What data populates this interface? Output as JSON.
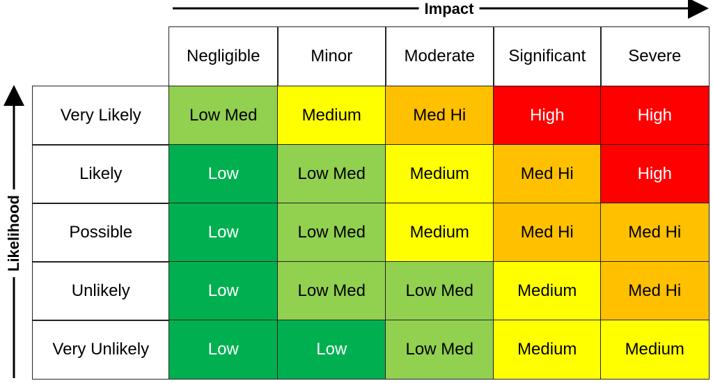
{
  "impact_label": "Impact",
  "likelihood_label": "Likelihood",
  "columns": [
    "Negligible",
    "Minor",
    "Moderate",
    "Significant",
    "Severe"
  ],
  "rows": [
    {
      "label": "Very Likely",
      "cells": [
        {
          "text": "Low Med",
          "color": "#92d050",
          "text_color": "#000000"
        },
        {
          "text": "Medium",
          "color": "#ffff00",
          "text_color": "#000000"
        },
        {
          "text": "Med Hi",
          "color": "#ffc000",
          "text_color": "#000000"
        },
        {
          "text": "High",
          "color": "#ff0000",
          "text_color": "#ffffff"
        },
        {
          "text": "High",
          "color": "#ff0000",
          "text_color": "#ffffff"
        }
      ]
    },
    {
      "label": "Likely",
      "cells": [
        {
          "text": "Low",
          "color": "#00b050",
          "text_color": "#ffffff"
        },
        {
          "text": "Low Med",
          "color": "#92d050",
          "text_color": "#000000"
        },
        {
          "text": "Medium",
          "color": "#ffff00",
          "text_color": "#000000"
        },
        {
          "text": "Med Hi",
          "color": "#ffc000",
          "text_color": "#000000"
        },
        {
          "text": "High",
          "color": "#ff0000",
          "text_color": "#ffffff"
        }
      ]
    },
    {
      "label": "Possible",
      "cells": [
        {
          "text": "Low",
          "color": "#00b050",
          "text_color": "#ffffff"
        },
        {
          "text": "Low Med",
          "color": "#92d050",
          "text_color": "#000000"
        },
        {
          "text": "Medium",
          "color": "#ffff00",
          "text_color": "#000000"
        },
        {
          "text": "Med Hi",
          "color": "#ffc000",
          "text_color": "#000000"
        },
        {
          "text": "Med Hi",
          "color": "#ffc000",
          "text_color": "#000000"
        }
      ]
    },
    {
      "label": "Unlikely",
      "cells": [
        {
          "text": "Low",
          "color": "#00b050",
          "text_color": "#ffffff"
        },
        {
          "text": "Low Med",
          "color": "#92d050",
          "text_color": "#000000"
        },
        {
          "text": "Low Med",
          "color": "#92d050",
          "text_color": "#000000"
        },
        {
          "text": "Medium",
          "color": "#ffff00",
          "text_color": "#000000"
        },
        {
          "text": "Med Hi",
          "color": "#ffc000",
          "text_color": "#000000"
        }
      ]
    },
    {
      "label": "Very Unlikely",
      "cells": [
        {
          "text": "Low",
          "color": "#00b050",
          "text_color": "#ffffff"
        },
        {
          "text": "Low",
          "color": "#00b050",
          "text_color": "#ffffff"
        },
        {
          "text": "Low Med",
          "color": "#92d050",
          "text_color": "#000000"
        },
        {
          "text": "Medium",
          "color": "#ffff00",
          "text_color": "#000000"
        },
        {
          "text": "Medium",
          "color": "#ffff00",
          "text_color": "#000000"
        }
      ]
    }
  ]
}
